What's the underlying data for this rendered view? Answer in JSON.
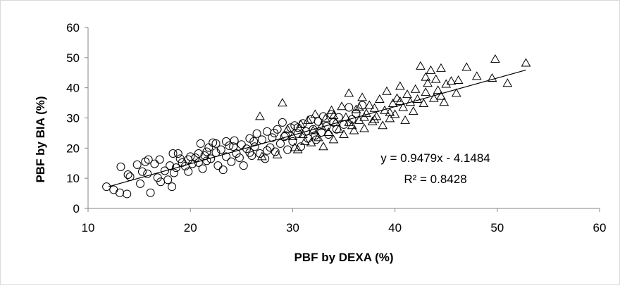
{
  "chart_data": {
    "type": "scatter",
    "xlabel": "PBF by DEXA (%)",
    "ylabel": "PBF by BIA (%)",
    "xlim": [
      10,
      60
    ],
    "ylim": [
      0,
      60
    ],
    "xticks": [
      "10",
      "20",
      "30",
      "40",
      "50",
      "60"
    ],
    "yticks": [
      "0",
      "10",
      "20",
      "30",
      "40",
      "50",
      "60"
    ],
    "grid": false,
    "legend": "none",
    "series": [
      {
        "marker": "circle",
        "points": [
          [
            11.8,
            7.2
          ],
          [
            12.5,
            6.2
          ],
          [
            13.1,
            5.2
          ],
          [
            13.2,
            13.8
          ],
          [
            13.8,
            4.8
          ],
          [
            13.9,
            11.2
          ],
          [
            14.1,
            10.5
          ],
          [
            14.8,
            14.5
          ],
          [
            15.1,
            8.2
          ],
          [
            15.3,
            12.2
          ],
          [
            15.6,
            15.5
          ],
          [
            15.8,
            11.5
          ],
          [
            15.9,
            16.2
          ],
          [
            16.1,
            5.2
          ],
          [
            16.5,
            14.8
          ],
          [
            16.8,
            10.2
          ],
          [
            17.0,
            16.2
          ],
          [
            17.1,
            8.8
          ],
          [
            17.5,
            12.5
          ],
          [
            17.8,
            9.5
          ],
          [
            18.0,
            14.2
          ],
          [
            18.2,
            7.2
          ],
          [
            18.3,
            18.2
          ],
          [
            18.4,
            11.8
          ],
          [
            18.6,
            13.5
          ],
          [
            18.8,
            18.2
          ],
          [
            19.0,
            16.5
          ],
          [
            19.2,
            15.2
          ],
          [
            19.5,
            14.0
          ],
          [
            19.8,
            12.2
          ],
          [
            20.0,
            17.2
          ],
          [
            20.2,
            14.8
          ],
          [
            20.5,
            16.8
          ],
          [
            20.8,
            18.2
          ],
          [
            21.0,
            21.5
          ],
          [
            21.2,
            13.2
          ],
          [
            21.4,
            17.5
          ],
          [
            21.6,
            15.8
          ],
          [
            21.8,
            20.2
          ],
          [
            22.0,
            16.5
          ],
          [
            22.2,
            21.8
          ],
          [
            22.5,
            18.5
          ],
          [
            22.7,
            14.2
          ],
          [
            23.0,
            19.5
          ],
          [
            23.2,
            12.8
          ],
          [
            23.5,
            17.2
          ],
          [
            23.8,
            20.8
          ],
          [
            24.0,
            15.5
          ],
          [
            24.3,
            22.5
          ],
          [
            24.5,
            18.2
          ],
          [
            24.8,
            16.8
          ],
          [
            25.0,
            21.2
          ],
          [
            25.2,
            14.2
          ],
          [
            25.5,
            19.8
          ],
          [
            25.8,
            23.2
          ],
          [
            26.0,
            17.5
          ],
          [
            26.3,
            20.5
          ],
          [
            26.5,
            24.8
          ],
          [
            26.8,
            18.2
          ],
          [
            27.0,
            22.8
          ],
          [
            27.3,
            16.5
          ],
          [
            27.5,
            25.5
          ],
          [
            27.8,
            20.2
          ],
          [
            28.0,
            23.5
          ],
          [
            28.3,
            18.8
          ],
          [
            28.5,
            26.2
          ],
          [
            28.8,
            21.5
          ],
          [
            29.0,
            28.5
          ],
          [
            29.3,
            24.2
          ],
          [
            29.5,
            19.5
          ],
          [
            29.8,
            26.8
          ],
          [
            30.0,
            22.2
          ],
          [
            30.2,
            27.5
          ],
          [
            30.5,
            24.8
          ],
          [
            30.8,
            20.5
          ],
          [
            31.0,
            28.2
          ],
          [
            31.3,
            25.5
          ],
          [
            31.5,
            23.2
          ],
          [
            31.8,
            29.5
          ],
          [
            32.0,
            26.2
          ],
          [
            32.3,
            22.8
          ],
          [
            32.5,
            28.8
          ],
          [
            32.8,
            25.2
          ],
          [
            33.0,
            30.5
          ],
          [
            33.3,
            27.2
          ],
          [
            33.5,
            24.5
          ],
          [
            33.8,
            31.2
          ],
          [
            34.0,
            28.5
          ],
          [
            34.3,
            26.2
          ],
          [
            34.5,
            30.2
          ],
          [
            35.0,
            27.8
          ],
          [
            35.5,
            33.5
          ],
          [
            35.8,
            29.5
          ],
          [
            36.2,
            31.5
          ],
          [
            36.8,
            34.2
          ],
          [
            22.5,
            21.5
          ],
          [
            24.2,
            20.5
          ],
          [
            21.6,
            18.8
          ],
          [
            26.2,
            22.2
          ],
          [
            28.2,
            25.0
          ],
          [
            30.5,
            26.8
          ],
          [
            19.8,
            16.2
          ],
          [
            23.5,
            22.2
          ],
          [
            25.8,
            18.5
          ],
          [
            27.5,
            19.2
          ],
          [
            29.2,
            23.8
          ],
          [
            32.2,
            24.2
          ],
          [
            20.8,
            15.2
          ]
        ]
      },
      {
        "marker": "triangle",
        "points": [
          [
            26.8,
            30.5
          ],
          [
            27.0,
            17.2
          ],
          [
            28.5,
            17.8
          ],
          [
            29.0,
            35.0
          ],
          [
            29.5,
            26.2
          ],
          [
            30.0,
            23.8
          ],
          [
            30.2,
            20.2
          ],
          [
            30.5,
            19.5
          ],
          [
            30.8,
            27.8
          ],
          [
            31.0,
            24.5
          ],
          [
            31.2,
            22.2
          ],
          [
            31.5,
            29.2
          ],
          [
            31.8,
            21.8
          ],
          [
            32.0,
            25.8
          ],
          [
            32.2,
            31.2
          ],
          [
            32.5,
            23.5
          ],
          [
            32.8,
            27.2
          ],
          [
            33.0,
            20.5
          ],
          [
            33.2,
            29.8
          ],
          [
            33.5,
            25.2
          ],
          [
            33.8,
            32.5
          ],
          [
            34.0,
            22.8
          ],
          [
            34.2,
            28.5
          ],
          [
            34.5,
            26.2
          ],
          [
            34.8,
            33.8
          ],
          [
            35.0,
            24.5
          ],
          [
            35.2,
            30.2
          ],
          [
            35.5,
            38.2
          ],
          [
            35.8,
            27.5
          ],
          [
            36.0,
            25.8
          ],
          [
            36.2,
            32.8
          ],
          [
            36.5,
            29.2
          ],
          [
            36.8,
            36.8
          ],
          [
            37.0,
            26.5
          ],
          [
            37.2,
            31.5
          ],
          [
            37.5,
            34.2
          ],
          [
            37.8,
            28.8
          ],
          [
            38.0,
            33.2
          ],
          [
            38.2,
            30.5
          ],
          [
            38.5,
            36.2
          ],
          [
            38.8,
            27.5
          ],
          [
            39.0,
            32.5
          ],
          [
            39.2,
            38.8
          ],
          [
            39.5,
            29.8
          ],
          [
            39.8,
            34.8
          ],
          [
            40.0,
            31.2
          ],
          [
            40.2,
            36.5
          ],
          [
            40.5,
            40.5
          ],
          [
            40.8,
            33.5
          ],
          [
            41.0,
            29.2
          ],
          [
            41.2,
            37.8
          ],
          [
            41.5,
            35.2
          ],
          [
            41.8,
            32.2
          ],
          [
            42.0,
            39.5
          ],
          [
            42.2,
            36.2
          ],
          [
            42.5,
            47.2
          ],
          [
            42.8,
            34.8
          ],
          [
            43.0,
            38.5
          ],
          [
            43.2,
            41.5
          ],
          [
            43.5,
            45.8
          ],
          [
            43.8,
            36.5
          ],
          [
            44.0,
            42.8
          ],
          [
            44.2,
            39.2
          ],
          [
            44.5,
            46.5
          ],
          [
            44.8,
            35.2
          ],
          [
            45.0,
            41.2
          ],
          [
            45.5,
            42.2
          ],
          [
            46.0,
            38.2
          ],
          [
            46.2,
            42.5
          ],
          [
            47.0,
            46.8
          ],
          [
            48.0,
            43.8
          ],
          [
            49.5,
            43.2
          ],
          [
            49.8,
            49.5
          ],
          [
            51.0,
            41.5
          ],
          [
            52.8,
            48.2
          ],
          [
            38.0,
            29.5
          ],
          [
            39.5,
            31.8
          ],
          [
            40.5,
            35.5
          ],
          [
            43.0,
            43.5
          ],
          [
            44.5,
            37.2
          ],
          [
            37.0,
            30.2
          ],
          [
            35.5,
            28.5
          ],
          [
            34.0,
            30.8
          ],
          [
            36.5,
            33.5
          ]
        ]
      }
    ],
    "trendline": {
      "slope": 0.9479,
      "intercept": -4.1484,
      "x_range": [
        12,
        52.8
      ]
    },
    "annotations": [
      "y = 0.9479x - 4.1484",
      "R² = 0.8428"
    ]
  }
}
